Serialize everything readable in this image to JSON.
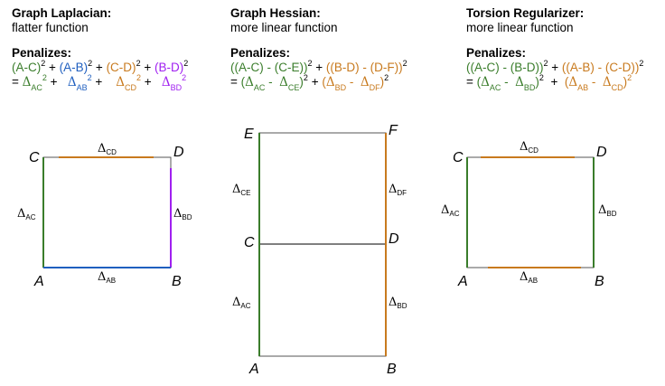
{
  "colors": {
    "green": "#3a7d2b",
    "blue": "#1f5fbf",
    "orange": "#c87a1e",
    "purple": "#a020f0",
    "gray": "#555555"
  },
  "panels": [
    {
      "title": "Graph Laplacian:",
      "subtitle": "flatter function",
      "penalizes": "Penalizes:",
      "line1": [
        {
          "t": "(A-C)",
          "c": "green"
        },
        {
          "sup": "2"
        },
        {
          "t": " + "
        },
        {
          "t": "(A-B)",
          "c": "blue"
        },
        {
          "sup": "2"
        },
        {
          "t": " + "
        },
        {
          "t": "(C-D)",
          "c": "orange"
        },
        {
          "sup": "2"
        },
        {
          "t": " + "
        },
        {
          "t": "(B-D)",
          "c": "purple"
        },
        {
          "sup": "2"
        }
      ],
      "line2": [
        {
          "t": "= "
        },
        {
          "d": "AC",
          "c": "green"
        },
        {
          "sup": "2",
          "c": "green"
        },
        {
          "t": " +   "
        },
        {
          "d": "AB",
          "c": "blue"
        },
        {
          "sup": "2",
          "c": "blue"
        },
        {
          "t": " +    "
        },
        {
          "d": "CD",
          "c": "orange"
        },
        {
          "sup": "2",
          "c": "orange"
        },
        {
          "t": " +   "
        },
        {
          "d": "BD",
          "c": "purple"
        },
        {
          "sup": "2",
          "c": "purple"
        }
      ]
    },
    {
      "title": "Graph Hessian:",
      "subtitle": "more linear function",
      "penalizes": "Penalizes:",
      "line1": [
        {
          "t": "((A-C) - (C-E))",
          "c": "green"
        },
        {
          "sup": "2"
        },
        {
          "t": " + "
        },
        {
          "t": "((B-D) - (D-F))",
          "c": "orange"
        },
        {
          "sup": "2"
        }
      ],
      "line2": [
        {
          "t": "= "
        },
        {
          "t": "(",
          "c": "green"
        },
        {
          "d": "AC",
          "c": "green"
        },
        {
          "t": " -  ",
          "c": "green"
        },
        {
          "d": "CE",
          "c": "green"
        },
        {
          "t": ")",
          "c": "green"
        },
        {
          "sup": "2"
        },
        {
          "t": " + "
        },
        {
          "t": "(",
          "c": "orange"
        },
        {
          "d": "BD",
          "c": "orange"
        },
        {
          "t": " -  ",
          "c": "orange"
        },
        {
          "d": "DF",
          "c": "orange"
        },
        {
          "t": ")",
          "c": "orange"
        },
        {
          "sup": "2"
        }
      ]
    },
    {
      "title": "Torsion Regularizer:",
      "subtitle": "more linear function",
      "penalizes": "Penalizes:",
      "line1": [
        {
          "t": "((A-C) - (B-D))",
          "c": "green"
        },
        {
          "sup": "2"
        },
        {
          "t": " + "
        },
        {
          "t": "((A-B) - (C-D))",
          "c": "orange"
        },
        {
          "sup": "2"
        }
      ],
      "line2": [
        {
          "t": "= "
        },
        {
          "t": "(",
          "c": "green"
        },
        {
          "d": "AC",
          "c": "green"
        },
        {
          "t": " -  ",
          "c": "green"
        },
        {
          "d": "BD",
          "c": "green"
        },
        {
          "t": ")",
          "c": "green"
        },
        {
          "sup": "2"
        },
        {
          "t": "  +  "
        },
        {
          "t": "(",
          "c": "orange"
        },
        {
          "d": "AB",
          "c": "orange"
        },
        {
          "t": " -  ",
          "c": "orange"
        },
        {
          "d": "CD",
          "c": "orange"
        },
        {
          "t": ")",
          "c": "orange"
        },
        {
          "sup": "2",
          "c": "orange"
        }
      ]
    }
  ],
  "diagrams": {
    "delta": "Δ",
    "laplacian": {
      "nodes": [
        "C",
        "D",
        "A",
        "B"
      ],
      "edges": [
        {
          "label": "CD",
          "c": "orange"
        },
        {
          "label": "AC",
          "c": "green"
        },
        {
          "label": "BD",
          "c": "purple"
        },
        {
          "label": "AB",
          "c": "blue"
        }
      ]
    },
    "hessian": {
      "nodes": [
        "E",
        "F",
        "C",
        "D",
        "A",
        "B"
      ],
      "edges": [
        {
          "label": "CE",
          "c": "green"
        },
        {
          "label": "DF",
          "c": "orange"
        },
        {
          "label": "AC",
          "c": "green"
        },
        {
          "label": "BD",
          "c": "orange"
        }
      ]
    },
    "torsion": {
      "nodes": [
        "C",
        "D",
        "A",
        "B"
      ],
      "edges": [
        {
          "label": "CD",
          "c": "orange"
        },
        {
          "label": "AC",
          "c": "green"
        },
        {
          "label": "BD",
          "c": "green"
        },
        {
          "label": "AB",
          "c": "orange"
        }
      ]
    }
  }
}
